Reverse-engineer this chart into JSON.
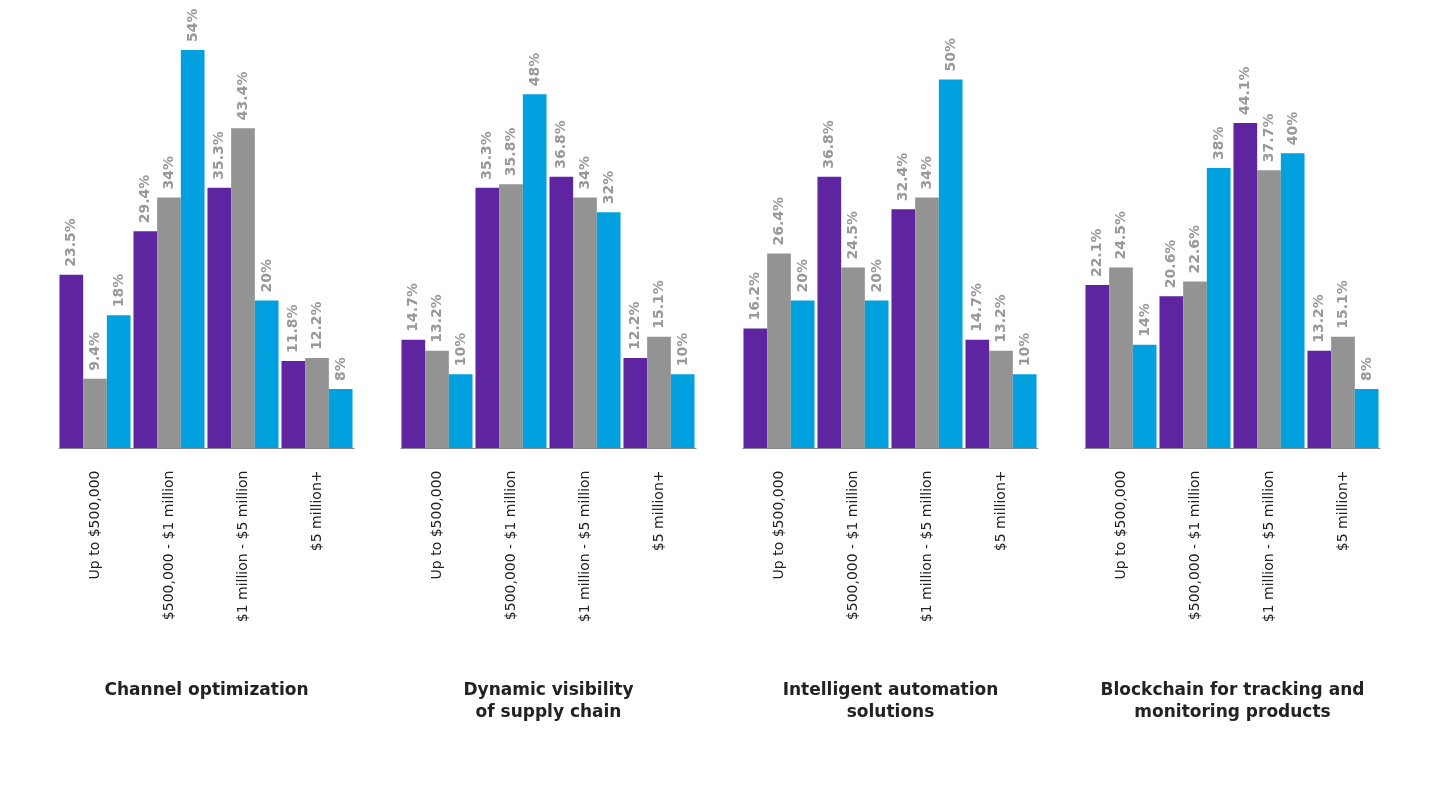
{
  "chart_data": [
    {
      "type": "bar",
      "xlabel": "Channel optimization",
      "categories": [
        "Up to $500,000",
        "$500,000 - $1 million",
        "$1 million - $5 million",
        "$5 million+"
      ],
      "series": [
        {
          "color": "#5f249f",
          "values": [
            23.5,
            29.4,
            35.3,
            11.8
          ],
          "value_labels": [
            "23.5%",
            "29.4%",
            "35.3%",
            "11.8%"
          ]
        },
        {
          "color": "#939393",
          "values": [
            9.4,
            34,
            43.4,
            12.2
          ],
          "value_labels": [
            "9.4%",
            "34%",
            "43.4%",
            "12.2%"
          ]
        },
        {
          "color": "#00a1de",
          "values": [
            18,
            54,
            20,
            8
          ],
          "value_labels": [
            "18%",
            "54%",
            "20%",
            "8%"
          ]
        }
      ]
    },
    {
      "type": "bar",
      "xlabel": "Dynamic visibility\nof supply chain",
      "categories": [
        "Up to $500,000",
        "$500,000 - $1 million",
        "$1 million - $5 million",
        "$5 million+"
      ],
      "series": [
        {
          "color": "#5f249f",
          "values": [
            14.7,
            35.3,
            36.8,
            12.2
          ],
          "value_labels": [
            "14.7%",
            "35.3%",
            "36.8%",
            "12.2%"
          ]
        },
        {
          "color": "#939393",
          "values": [
            13.2,
            35.8,
            34,
            15.1
          ],
          "value_labels": [
            "13.2%",
            "35.8%",
            "34%",
            "15.1%"
          ]
        },
        {
          "color": "#00a1de",
          "values": [
            10,
            48,
            32,
            10
          ],
          "value_labels": [
            "10%",
            "48%",
            "32%",
            "10%"
          ]
        }
      ]
    },
    {
      "type": "bar",
      "xlabel": "Intelligent automation\nsolutions",
      "categories": [
        "Up to $500,000",
        "$500,000 - $1 million",
        "$1 million - $5 million",
        "$5 million+"
      ],
      "series": [
        {
          "color": "#5f249f",
          "values": [
            16.2,
            36.8,
            32.4,
            14.7
          ],
          "value_labels": [
            "16.2%",
            "36.8%",
            "32.4%",
            "14.7%"
          ]
        },
        {
          "color": "#939393",
          "values": [
            26.4,
            24.5,
            34,
            13.2
          ],
          "value_labels": [
            "26.4%",
            "24.5%",
            "34%",
            "13.2%"
          ]
        },
        {
          "color": "#00a1de",
          "values": [
            20,
            20,
            50,
            10
          ],
          "value_labels": [
            "20%",
            "20%",
            "50%",
            "10%"
          ]
        }
      ]
    },
    {
      "type": "bar",
      "xlabel": "Blockchain for tracking and\nmonitoring products",
      "categories": [
        "Up to $500,000",
        "$500,000 - $1 million",
        "$1 million - $5 million",
        "$5 million+"
      ],
      "series": [
        {
          "color": "#5f249f",
          "values": [
            22.1,
            20.6,
            44.1,
            13.2
          ],
          "value_labels": [
            "22.1%",
            "20.6%",
            "44.1%",
            "13.2%"
          ]
        },
        {
          "color": "#939393",
          "values": [
            24.5,
            22.6,
            37.7,
            15.1
          ],
          "value_labels": [
            "24.5%",
            "22.6%",
            "37.7%",
            "15.1%"
          ]
        },
        {
          "color": "#00a1de",
          "values": [
            14,
            38,
            40,
            8
          ],
          "value_labels": [
            "14%",
            "38%",
            "40%",
            "8%"
          ]
        }
      ]
    }
  ]
}
